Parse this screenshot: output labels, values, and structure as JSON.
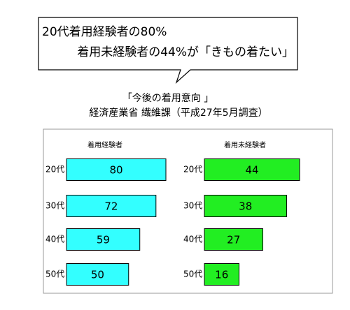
{
  "callout": [
    "20代着用経験者の80%",
    "着用未経験者の44%が「きもの着たい」"
  ],
  "title": "「今後の着用意向 」",
  "subtitle": "経済産業省 繊維課（平成27年5月調査）",
  "chart_data": [
    {
      "type": "bar",
      "orientation": "horizontal",
      "title": "着用経験者",
      "categories": [
        "20代",
        "30代",
        "40代",
        "50代"
      ],
      "values": [
        80,
        72,
        59,
        50
      ],
      "color": "#33ffff"
    },
    {
      "type": "bar",
      "orientation": "horizontal",
      "title": "着用未経験者",
      "categories": [
        "20代",
        "30代",
        "40代",
        "50代"
      ],
      "values": [
        44,
        38,
        27,
        16
      ],
      "color": "#22ee22"
    }
  ]
}
